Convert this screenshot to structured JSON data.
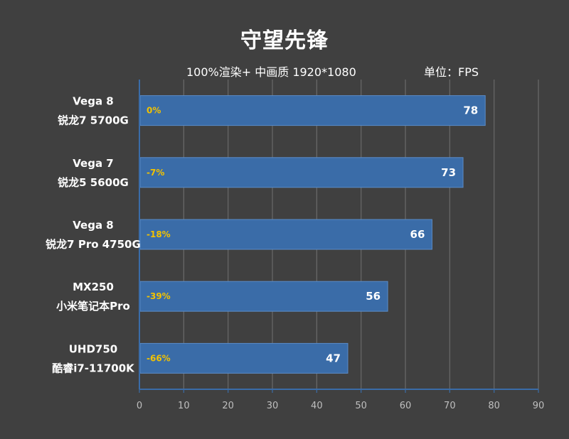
{
  "chart_data": {
    "type": "bar",
    "orientation": "horizontal",
    "title": "守望先锋",
    "subtitle": "100%渲染+ 中画质 1920*1080",
    "unit_label": "单位：FPS",
    "categories": [
      [
        "Vega 8",
        "锐龙7 5700G"
      ],
      [
        "Vega 7",
        "锐龙5 5600G"
      ],
      [
        "Vega 8",
        "锐龙7 Pro 4750G"
      ],
      [
        "MX250",
        "小米笔记本Pro"
      ],
      [
        "UHD750",
        "酷睿i7-11700K"
      ]
    ],
    "values": [
      78,
      73,
      66,
      56,
      47
    ],
    "percent_labels": [
      "0%",
      "-7%",
      "-18%",
      "-39%",
      "-66%"
    ],
    "xlim": [
      0,
      90
    ],
    "xticks": [
      0,
      10,
      20,
      30,
      40,
      50,
      60,
      70,
      80,
      90
    ],
    "grid": true,
    "legend": "none",
    "colors": {
      "bar": "#3a6ca8",
      "bar_edge": "#5a8cc8",
      "background": "#404040",
      "grid": "#6a6a6a",
      "percent_text": "#f2c200",
      "axis": "#3a6ca8"
    }
  }
}
